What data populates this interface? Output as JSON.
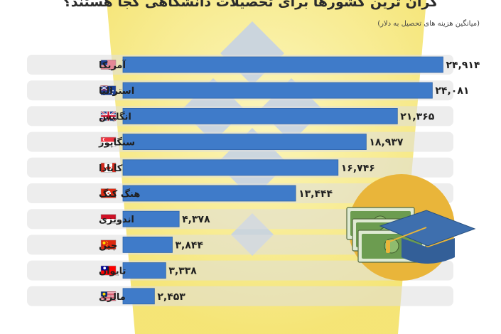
{
  "title": "گران ترین کشورها برای تحصیلات دانشگاهی کجا هستند؟",
  "subtitle": "(میانگین هزینه های تحصیل به دلار)",
  "colors": {
    "bar": "#3f7bc9",
    "bar_edge": "#2f64aa",
    "row_band": "#dedede",
    "bg_yellow": "#f6e878",
    "emblem": "#c7d3e4",
    "coin": "#e9b53a",
    "cash": "#6c9c50",
    "cap": "#3e6fae"
  },
  "icons": [
    "flag-usa-icon",
    "flag-australia-icon",
    "flag-uk-icon",
    "flag-singapore-icon",
    "flag-canada-icon",
    "flag-hongkong-icon",
    "flag-indonesia-icon",
    "flag-china-icon",
    "flag-taiwan-icon",
    "flag-malaysia-icon",
    "money-graduation-cap-icon"
  ],
  "chart_data": {
    "type": "bar",
    "orientation": "horizontal",
    "title": "گران ترین کشورها برای تحصیلات دانشگاهی کجا هستند؟",
    "subtitle": "(میانگین هزینه های تحصیل به دلار)",
    "categories": [
      "آمریکا",
      "استرالیا",
      "انگلیس",
      "سنگاپور",
      "کانادا",
      "هنگ کنگ",
      "اندونزی",
      "چین",
      "تایوان",
      "مالزی"
    ],
    "values": [
      24914,
      24081,
      21365,
      18937,
      16746,
      13444,
      4378,
      3844,
      3338,
      2453
    ],
    "value_labels": [
      "۲۴,۹۱۴",
      "۲۴,۰۸۱",
      "۲۱,۳۶۵",
      "۱۸,۹۳۷",
      "۱۶,۷۴۶",
      "۱۳,۴۴۴",
      "۴,۳۷۸",
      "۳,۸۴۴",
      "۳,۳۳۸",
      "۲,۴۵۳"
    ],
    "xlim": [
      0,
      25000
    ],
    "grid": false,
    "legend": "none"
  }
}
